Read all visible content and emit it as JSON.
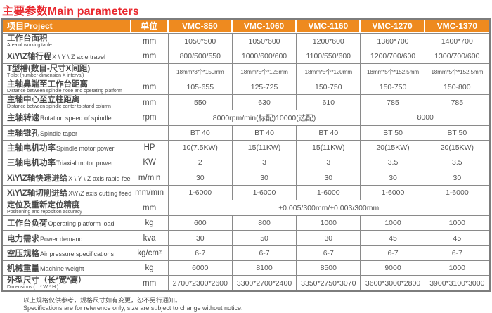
{
  "page": {
    "title": "主要参数Main parameters",
    "footer_cn": "以上规格仅供参考，规格尺寸如有变更，恕不另行通知。",
    "footer_en": "Specifications are for reference only, size are subject to change without notice."
  },
  "colors": {
    "header_bg": "#EE8A1F",
    "title_red": "#E9282E",
    "border_gray": "#8A8A8A",
    "text_gray": "#4F4F4F"
  },
  "table": {
    "header": {
      "project": "项目Project",
      "unit": "单位",
      "models": [
        "VMC-850",
        "VMC-1060",
        "VMC-1160",
        "VMC-1270",
        "VMC-1370"
      ]
    },
    "rows": [
      {
        "cn": "工作台面积",
        "en": "Area of working table",
        "layout": "stacked",
        "unit": "mm",
        "values": [
          "1050*500",
          "1050*600",
          "1200*600",
          "1360*700",
          "1400*700"
        ]
      },
      {
        "cn": "X\\Y\\Z轴行程",
        "en": "X \\ Y \\ Z axle travel",
        "layout": "inline",
        "unit": "mm",
        "values": [
          "800/500/550",
          "1000/600/600",
          "1100/550/600",
          "1200/700/600",
          "1300/700/600"
        ]
      },
      {
        "cn": "T型槽(数目-尺寸X间距)",
        "en": "T-slot (number-dimension X interval)",
        "layout": "stacked",
        "unit": "",
        "small_values": true,
        "values": [
          "18mm*3个*150mm",
          "18mm*5个*125mm",
          "18mm*5个*120mm",
          "18mm*5个*152.5mm",
          "18mm*5个*152.5mm"
        ]
      },
      {
        "cn": "主轴鼻端至工作台距离",
        "en": "Distance between spindle nose and operating platform",
        "layout": "stacked",
        "unit": "mm",
        "values": [
          "105-655",
          "125-725",
          "150-750",
          "150-750",
          "150-800"
        ]
      },
      {
        "cn": "主轴中心至立柱距离",
        "en": "Distance between spindle center to stand column",
        "layout": "stacked",
        "unit": "mm",
        "values": [
          "550",
          "630",
          "610",
          "785",
          "785"
        ]
      },
      {
        "cn": "主轴转速",
        "en": "Rotation speed of spindle",
        "layout": "inline",
        "unit": "rpm",
        "spans": [
          {
            "text": "8000rpm/min(标配)10000(选配)",
            "cols": 3
          },
          {
            "text": "8000",
            "cols": 2
          }
        ]
      },
      {
        "cn": "主轴锥孔",
        "en": "Spindle taper",
        "layout": "inline",
        "unit": "",
        "values": [
          "BT 40",
          "BT 40",
          "BT 40",
          "BT 50",
          "BT 50"
        ]
      },
      {
        "cn": "主轴电机功率",
        "en": "Spindle motor power",
        "layout": "inline",
        "unit": "HP",
        "values": [
          "10(7.5KW)",
          "15(11KW)",
          "15(11KW)",
          "20(15KW)",
          "20(15KW)"
        ]
      },
      {
        "cn": "三轴电机功率",
        "en": "Triaxial motor power",
        "layout": "inline",
        "unit": "KW",
        "values": [
          "2",
          "3",
          "3",
          "3.5",
          "3.5"
        ]
      },
      {
        "cn": "X\\Y\\Z轴快速进给",
        "en": "X \\ Y \\ Z axis rapid feed",
        "layout": "inline",
        "unit": "m/min",
        "values": [
          "30",
          "30",
          "30",
          "30",
          "30"
        ]
      },
      {
        "cn": "X\\Y\\Z轴切削进给",
        "en": "X\\Y\\Z axis cutting feed",
        "layout": "inline",
        "unit": "mm/min",
        "values": [
          "1-6000",
          "1-6000",
          "1-6000",
          "1-6000",
          "1-6000"
        ]
      },
      {
        "cn": "定位及重新定位精度",
        "en": "Positioning and reposition accuracy",
        "layout": "stacked",
        "unit": "mm",
        "spans": [
          {
            "text": "±0.005/300mm/±0.003/300mm",
            "cols": 5
          }
        ]
      },
      {
        "cn": "工作台负荷",
        "en": "Operating platform load",
        "layout": "inline",
        "unit": "kg",
        "values": [
          "600",
          "800",
          "1000",
          "1000",
          "1000"
        ]
      },
      {
        "cn": "电力需求",
        "en": "Power demand",
        "layout": "inline",
        "unit": "kva",
        "values": [
          "30",
          "50",
          "30",
          "45",
          "45"
        ]
      },
      {
        "cn": "空压规格",
        "en": "Air pressure specifications",
        "layout": "inline",
        "unit": "kg/cm²",
        "values": [
          "6-7",
          "6-7",
          "6-7",
          "6-7",
          "6-7"
        ]
      },
      {
        "cn": "机械重量",
        "en": "Machine weight",
        "layout": "inline",
        "unit": "kg",
        "values": [
          "6000",
          "8100",
          "8500",
          "9000",
          "1000"
        ]
      },
      {
        "cn": "外型尺寸（长*宽*高）",
        "en": "Dimensions ( L * W * H )",
        "layout": "stacked",
        "unit": "mm",
        "values": [
          "2700*2300*2600",
          "3300*2700*2400",
          "3350*2750*3070",
          "3600*3000*2800",
          "3900*3100*3000"
        ]
      }
    ]
  }
}
